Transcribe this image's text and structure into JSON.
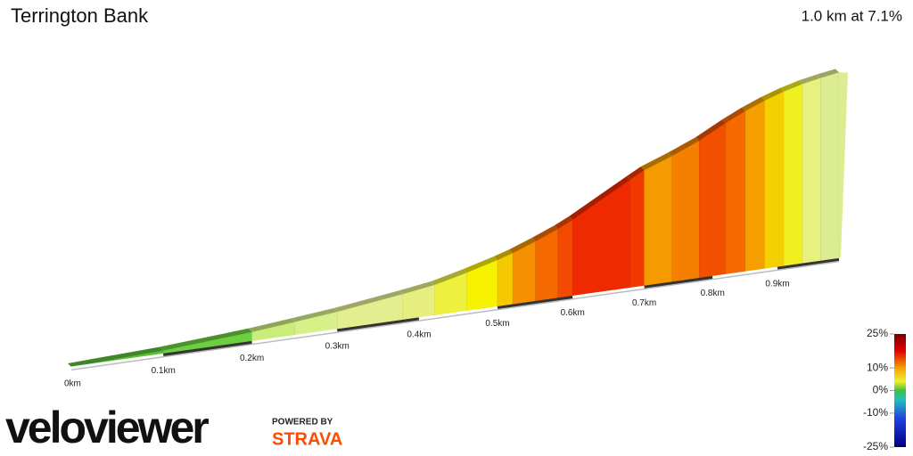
{
  "header": {
    "title": "Terrington Bank",
    "summary": "1.0 km at 7.1%"
  },
  "chart_data": {
    "type": "profile",
    "xlim": [
      0,
      1.0
    ],
    "xticks": [
      {
        "value": 0,
        "label": "0km"
      },
      {
        "value": 0.1,
        "label": "0.1km"
      },
      {
        "value": 0.2,
        "label": "0.2km"
      },
      {
        "value": 0.3,
        "label": "0.3km"
      },
      {
        "value": 0.4,
        "label": "0.4km"
      },
      {
        "value": 0.5,
        "label": "0.5km"
      },
      {
        "value": 0.6,
        "label": "0.6km"
      },
      {
        "value": 0.7,
        "label": "0.7km"
      },
      {
        "value": 0.8,
        "label": "0.8km"
      },
      {
        "value": 0.9,
        "label": "0.9km"
      }
    ],
    "segments": {
      "x": [
        0,
        0.1,
        0.2,
        0.25,
        0.3,
        0.38,
        0.42,
        0.46,
        0.5,
        0.52,
        0.55,
        0.58,
        0.6,
        0.68,
        0.7,
        0.74,
        0.78,
        0.82,
        0.85,
        0.88,
        0.91,
        0.94,
        0.97
      ],
      "values": [
        1.5,
        2.5,
        3.5,
        3.5,
        4.5,
        5,
        8,
        9,
        10,
        12,
        13,
        15,
        17,
        16,
        11,
        12,
        15,
        13,
        11,
        9,
        7,
        5,
        4
      ],
      "colors": [
        "#5cbf3a",
        "#6ccf3f",
        "#c9ec7a",
        "#d8f08a",
        "#e2ee90",
        "#e6ee80",
        "#eef040",
        "#f6f200",
        "#f5c800",
        "#f59000",
        "#f56a00",
        "#f24a00",
        "#f02a00",
        "#f03a00",
        "#f59a00",
        "#f58000",
        "#f25000",
        "#f56a00",
        "#f5a000",
        "#f5d000",
        "#f0f020",
        "#e8f080",
        "#dcec90"
      ]
    },
    "colorbar": {
      "ylim": [
        -25,
        25
      ],
      "yticks": [
        {
          "value": 25,
          "label": "25%"
        },
        {
          "value": 10,
          "label": "10%"
        },
        {
          "value": 0,
          "label": "0%"
        },
        {
          "value": -10,
          "label": "-10%"
        },
        {
          "value": -25,
          "label": "-25%"
        }
      ]
    }
  },
  "footer": {
    "logo": "veloviewer",
    "powered": "POWERED BY",
    "strava": "STRAVA"
  }
}
